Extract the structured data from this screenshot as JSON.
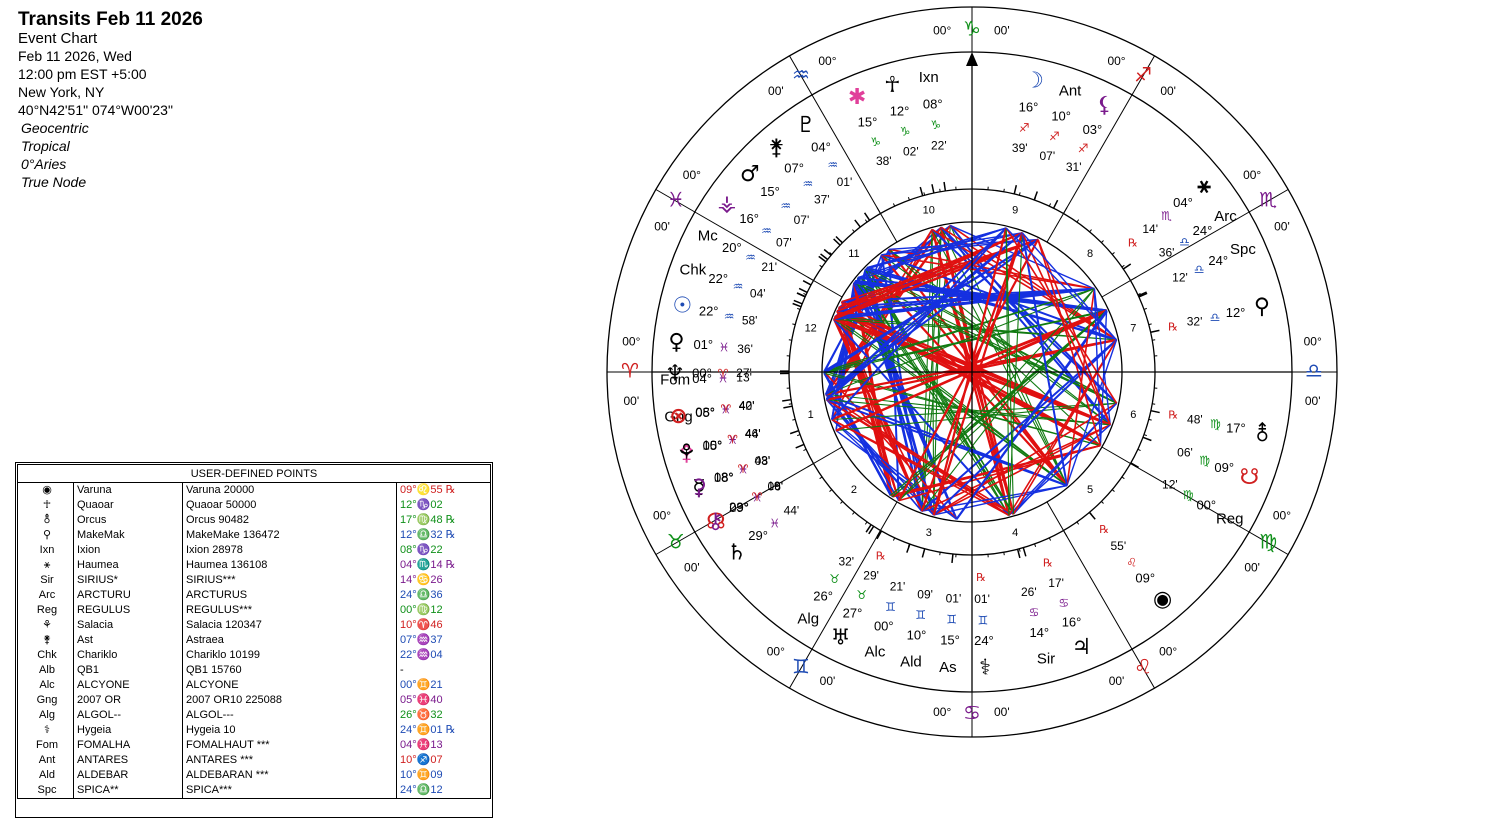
{
  "header": {
    "title": "Transits Feb 11 2026",
    "subtitle": "Event Chart",
    "lines": [
      "Feb 11 2026, Wed",
      "12:00 pm  EST +5:00",
      "New York, NY",
      "40°N42'51\" 074°W00'23\""
    ],
    "settings": [
      "Geocentric",
      "Tropical",
      "0°Aries",
      "True Node"
    ]
  },
  "table": {
    "title": "USER-DEFINED POINTS",
    "rows": [
      [
        "◉",
        "Varuna",
        "Varuna 20000",
        "09°♌55 ℞"
      ],
      [
        "☥",
        "Quaoar",
        "Quaoar 50000",
        "12°♑02"
      ],
      [
        "⚨",
        "Orcus",
        "Orcus 90482",
        "17°♍48 ℞"
      ],
      [
        "⚲",
        "MakeMak",
        "MakeMake 136472",
        "12°♎32 ℞"
      ],
      [
        "Ixn",
        "Ixion",
        "Ixion 28978",
        "08°♑22"
      ],
      [
        "⚹",
        "Haumea",
        "Haumea 136108",
        "04°♏14 ℞"
      ],
      [
        "Sir",
        "SIRIUS*",
        "SIRIUS***",
        "14°♋26"
      ],
      [
        "Arc",
        "ARCTURU",
        "ARCTURUS",
        "24°♎36"
      ],
      [
        "Reg",
        "REGULUS",
        "REGULUS***",
        "00°♍12"
      ],
      [
        "⚘",
        "Salacia",
        "Salacia 120347",
        "10°♈46"
      ],
      [
        "⚵",
        "Ast",
        "Astraea",
        "07°♒37"
      ],
      [
        "Chk",
        "Chariklo",
        "Chariklo 10199",
        "22°♒04"
      ],
      [
        "Alb",
        "QB1",
        "QB1 15760",
        "-"
      ],
      [
        "Alc",
        "ALCYONE",
        "ALCYONE",
        "00°♊21"
      ],
      [
        "Gng",
        "2007 OR",
        "2007 OR10 225088",
        "05°♓40"
      ],
      [
        "Alg",
        "ALGOL--",
        "ALGOL---",
        "26°♉32"
      ],
      [
        "⚕",
        "Hygeia",
        "Hygeia 10",
        "24°♊01 ℞"
      ],
      [
        "Fom",
        "FOMALHA",
        "FOMALHAUT ***",
        "04°♓13"
      ],
      [
        "Ant",
        "ANTARES",
        "ANTARES ***",
        "10°♐07"
      ],
      [
        "Ald",
        "ALDEBAR",
        "ALDEBARAN ***",
        "10°♊09"
      ],
      [
        "Spc",
        "SPICA**",
        "SPICA***",
        "24°♎12"
      ]
    ],
    "row_colors": [
      "#d02020",
      "#10901a",
      "#10901a",
      "#1e4bb4",
      "#10901a",
      "#7a1a8c",
      "#7a1a8c",
      "#1e4bb4",
      "#10901a",
      "#d02020",
      "#1e4bb4",
      "#1e4bb4",
      "#000000",
      "#1e4bb4",
      "#7a1a8c",
      "#10901a",
      "#1e4bb4",
      "#7a1a8c",
      "#d02020",
      "#1e4bb4",
      "#1e4bb4"
    ]
  },
  "wheel": {
    "signs": [
      {
        "glyph": "♈",
        "color": "#d02020",
        "deg": "00°",
        "min": "00'"
      },
      {
        "glyph": "♉",
        "color": "#10901a",
        "deg": "00°",
        "min": "00'"
      },
      {
        "glyph": "♊",
        "color": "#1e4bb4",
        "deg": "00°",
        "min": "00'"
      },
      {
        "glyph": "♋",
        "color": "#7a1a8c",
        "deg": "00°",
        "min": "00'"
      },
      {
        "glyph": "♌",
        "color": "#d02020",
        "deg": "00°",
        "min": "00'"
      },
      {
        "glyph": "♍",
        "color": "#10901a",
        "deg": "00°",
        "min": "00'"
      },
      {
        "glyph": "♎",
        "color": "#1e4bb4",
        "deg": "00°",
        "min": "00'"
      },
      {
        "glyph": "♏",
        "color": "#7a1a8c",
        "deg": "00°",
        "min": "00'"
      },
      {
        "glyph": "♐",
        "color": "#d02020",
        "deg": "00°",
        "min": "00'"
      },
      {
        "glyph": "♑",
        "color": "#10901a",
        "deg": "00°",
        "min": "00'"
      },
      {
        "glyph": "♒",
        "color": "#1e4bb4",
        "deg": "00°",
        "min": "00'"
      },
      {
        "glyph": "♓",
        "color": "#7a1a8c",
        "deg": "00°",
        "min": "00'"
      }
    ],
    "houses": [
      "1",
      "2",
      "3",
      "4",
      "5",
      "6",
      "7",
      "8",
      "9",
      "10",
      "11",
      "12"
    ],
    "points": [
      {
        "glyph": "Ixn",
        "deg": "08°",
        "sign": "♑",
        "min": "22'"
      },
      {
        "glyph": "☥",
        "deg": "12°",
        "sign": "♑",
        "min": "02'"
      },
      {
        "glyph": "✱",
        "deg": "15°",
        "sign": "♑",
        "min": "38'",
        "color": "#e0409a"
      },
      {
        "glyph": "♇",
        "deg": "04°",
        "sign": "♒",
        "min": "01'"
      },
      {
        "glyph": "⚵",
        "deg": "07°",
        "sign": "♒",
        "min": "37'"
      },
      {
        "glyph": "♂",
        "deg": "15°",
        "sign": "♒",
        "min": "07'"
      },
      {
        "glyph": "⚶",
        "deg": "16°",
        "sign": "♒",
        "min": "07'",
        "color": "#7a1a8c"
      },
      {
        "glyph": "Mc",
        "deg": "20°",
        "sign": "♒",
        "min": "21'"
      },
      {
        "glyph": "Chk",
        "deg": "22°",
        "sign": "♒",
        "min": "04'"
      },
      {
        "glyph": "☉",
        "deg": "22°",
        "sign": "♒",
        "min": "58'",
        "color": "#1e4bb4"
      },
      {
        "glyph": "♀",
        "deg": "01°",
        "sign": "♓",
        "min": "36'"
      },
      {
        "glyph": "Fom",
        "deg": "04°",
        "sign": "♓",
        "min": "13'"
      },
      {
        "glyph": "Gng",
        "deg": "05°",
        "sign": "♓",
        "min": "40'"
      },
      {
        "glyph": "⚴",
        "deg": "05°",
        "sign": "♓",
        "min": "44'",
        "color": "#e0409a"
      },
      {
        "glyph": "☿",
        "deg": "08°",
        "sign": "♓",
        "min": "08'"
      },
      {
        "glyph": "☊",
        "deg": "09°",
        "sign": "♓",
        "min": "06'",
        "color": "#d02020"
      },
      {
        "glyph": "♄",
        "deg": "29°",
        "sign": "♓",
        "min": "44'"
      },
      {
        "glyph": "♆",
        "deg": "00°",
        "sign": "♈",
        "min": "27'"
      },
      {
        "glyph": "⊗",
        "deg": "08°",
        "sign": "♈",
        "min": "42'",
        "color": "#d02020"
      },
      {
        "glyph": "⚘",
        "deg": "10°",
        "sign": "♈",
        "min": "46'"
      },
      {
        "glyph": "⚳",
        "deg": "18°",
        "sign": "♈",
        "min": "43'",
        "color": "#7a1a8c"
      },
      {
        "glyph": "⚷",
        "deg": "23°",
        "sign": "♈",
        "min": "19'",
        "color": "#7a1a8c"
      },
      {
        "glyph": "Alg",
        "deg": "26°",
        "sign": "♉",
        "min": "32'"
      },
      {
        "glyph": "♅",
        "deg": "27°",
        "sign": "♉",
        "min": "29'",
        "retro": "℞"
      },
      {
        "glyph": "Alc",
        "deg": "00°",
        "sign": "♊",
        "min": "21'"
      },
      {
        "glyph": "Ald",
        "deg": "10°",
        "sign": "♊",
        "min": "09'"
      },
      {
        "glyph": "As",
        "deg": "15°",
        "sign": "♊",
        "min": "01'"
      },
      {
        "glyph": "⚕",
        "deg": "24°",
        "sign": "♊",
        "min": "01'",
        "retro": "℞"
      },
      {
        "glyph": "Sir",
        "deg": "14°",
        "sign": "♋",
        "min": "26'"
      },
      {
        "glyph": "♃",
        "deg": "16°",
        "sign": "♋",
        "min": "17'",
        "retro": "℞"
      },
      {
        "glyph": "◉",
        "deg": "09°",
        "sign": "♌",
        "min": "55'",
        "retro": "℞"
      },
      {
        "glyph": "Reg",
        "deg": "00°",
        "sign": "♍",
        "min": "12'"
      },
      {
        "glyph": "☋",
        "deg": "09°",
        "sign": "♍",
        "min": "06'",
        "color": "#d02020"
      },
      {
        "glyph": "⚨",
        "deg": "17°",
        "sign": "♍",
        "min": "48'",
        "retro": "℞"
      },
      {
        "glyph": "⚲",
        "deg": "12°",
        "sign": "♎",
        "min": "32'",
        "retro": "℞"
      },
      {
        "glyph": "Spc",
        "deg": "24°",
        "sign": "♎",
        "min": "12'"
      },
      {
        "glyph": "Arc",
        "deg": "24°",
        "sign": "♎",
        "min": "36'"
      },
      {
        "glyph": "⚹",
        "deg": "04°",
        "sign": "♏",
        "min": "14'",
        "retro": "℞"
      },
      {
        "glyph": "⚸",
        "deg": "03°",
        "sign": "♐",
        "min": "31'",
        "color": "#7a1a8c"
      },
      {
        "glyph": "Ant",
        "deg": "10°",
        "sign": "♐",
        "min": "07'"
      },
      {
        "glyph": "☽",
        "deg": "16°",
        "sign": "♐",
        "min": "39'",
        "color": "#1e4bb4"
      }
    ]
  }
}
